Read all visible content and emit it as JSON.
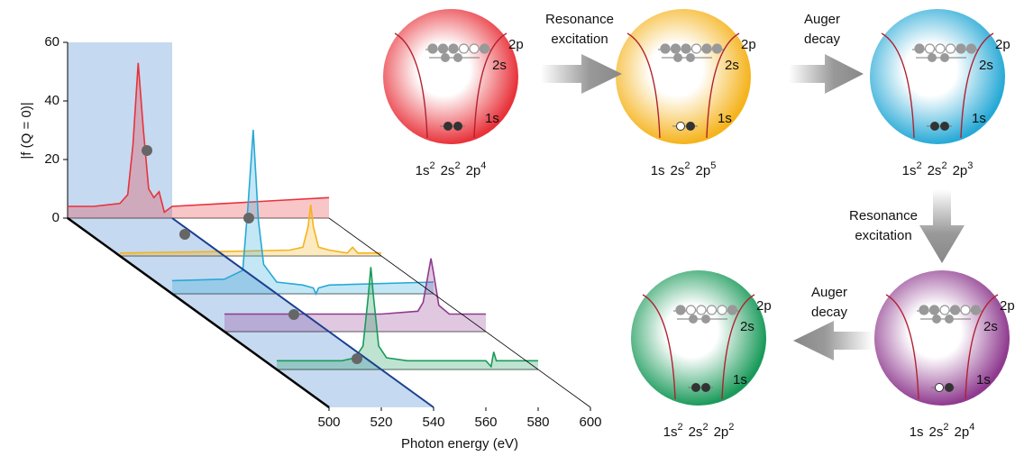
{
  "chart_data": {
    "type": "waterfall",
    "ylabel": "|f (Q = 0)|",
    "xlabel": "Photon energy (eV)",
    "xlim": [
      500,
      600
    ],
    "xticks": [
      500,
      520,
      540,
      560,
      580,
      600
    ],
    "ylim": [
      0,
      60
    ],
    "yticks": [
      0,
      20,
      40,
      60
    ],
    "shaded_range": [
      500,
      540
    ],
    "series": [
      {
        "color": "#e8323a",
        "x": [
          500,
          510,
          520,
          523,
          525,
          527,
          529,
          531,
          533,
          535,
          537,
          540,
          560,
          580,
          600
        ],
        "values": [
          4,
          4,
          5,
          8,
          25,
          53,
          30,
          10,
          7,
          9,
          2,
          4,
          5,
          6,
          7
        ]
      },
      {
        "color": "#f5b31c",
        "x": [
          500,
          540,
          565,
          570,
          572,
          573,
          574,
          576,
          580,
          587,
          589,
          591,
          600
        ],
        "values": [
          1,
          1.5,
          2,
          3,
          10,
          17.5,
          10,
          3,
          2,
          1,
          3,
          1,
          1
        ]
      },
      {
        "color": "#27a9d6",
        "x": [
          500,
          520,
          527,
          529,
          531,
          533,
          535,
          540,
          550,
          554,
          555,
          556,
          560,
          600
        ],
        "values": [
          4.5,
          5,
          8,
          30,
          56,
          25,
          10,
          4,
          3,
          2,
          0,
          2,
          3,
          4
        ]
      },
      {
        "color": "#8e3a8e",
        "x": [
          500,
          560,
          574,
          576,
          578,
          579,
          580,
          582,
          586,
          600
        ],
        "values": [
          6,
          6,
          7,
          10,
          20,
          25,
          20,
          9,
          6,
          6
        ]
      },
      {
        "color": "#1a9a5a",
        "x": [
          500,
          525,
          530,
          533,
          535,
          536,
          537,
          539,
          542,
          550,
          580,
          582,
          583,
          584,
          600
        ],
        "values": [
          3,
          3,
          4,
          8,
          25,
          35,
          25,
          8,
          4,
          3,
          3,
          1,
          6,
          3,
          3
        ]
      }
    ]
  },
  "levels": [
    "2p",
    "2s",
    "1s"
  ],
  "states": [
    {
      "color": "#e8323a",
      "config": [
        {
          "orbital": "1s",
          "count": 2
        },
        {
          "orbital": "2s",
          "count": 2
        },
        {
          "orbital": "2p",
          "count": 4
        }
      ]
    },
    {
      "color": "#f5b31c",
      "config": [
        {
          "orbital": "1s"
        },
        {
          "orbital": "2s",
          "count": 2
        },
        {
          "orbital": "2p",
          "count": 5
        }
      ]
    },
    {
      "color": "#27a9d6",
      "config": [
        {
          "orbital": "1s",
          "count": 2
        },
        {
          "orbital": "2s",
          "count": 2
        },
        {
          "orbital": "2p",
          "count": 3
        }
      ]
    },
    {
      "color": "#8e3a8e",
      "config": [
        {
          "orbital": "1s"
        },
        {
          "orbital": "2s",
          "count": 2
        },
        {
          "orbital": "2p",
          "count": 4
        }
      ]
    },
    {
      "color": "#1a9a5a",
      "config": [
        {
          "orbital": "1s",
          "count": 2
        },
        {
          "orbital": "2s",
          "count": 2
        },
        {
          "orbital": "2p",
          "count": 2
        }
      ]
    }
  ],
  "transitions": [
    {
      "label": [
        "Resonance",
        "excitation"
      ]
    },
    {
      "label": [
        "Auger",
        "decay"
      ]
    },
    {
      "label": [
        "Resonance",
        "excitation"
      ]
    },
    {
      "label": [
        "Auger",
        "decay"
      ]
    }
  ]
}
